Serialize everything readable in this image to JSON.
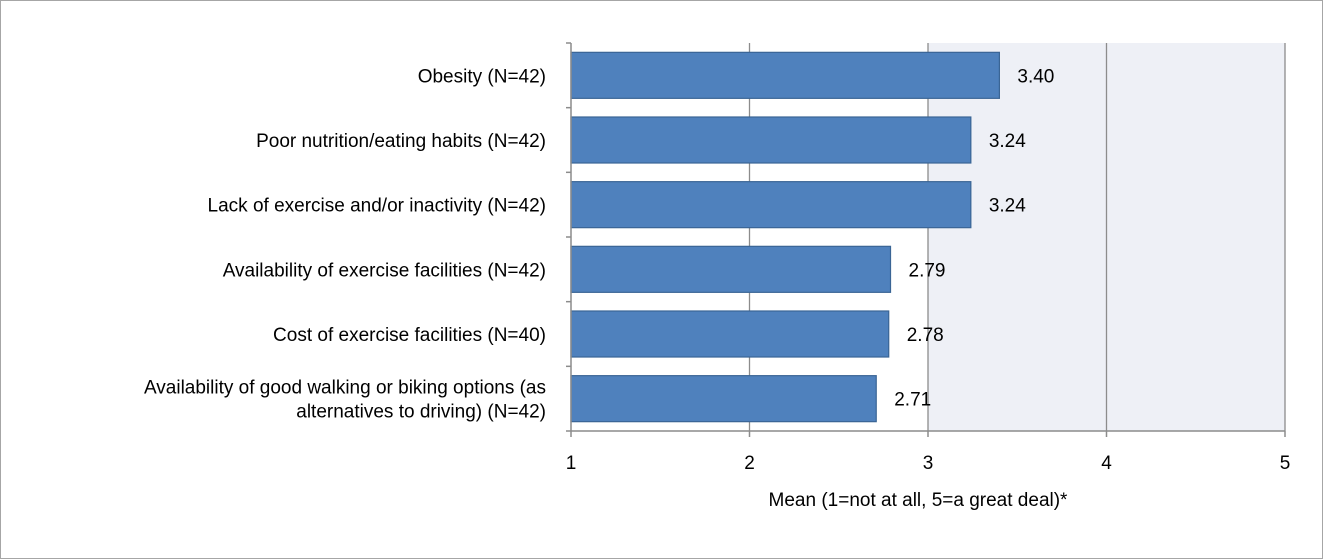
{
  "chart_data": {
    "type": "bar",
    "orientation": "horizontal",
    "categories": [
      "Obesity (N=42)",
      "Poor nutrition/eating habits (N=42)",
      "Lack of exercise and/or inactivity (N=42)",
      "Availability of exercise facilities (N=42)",
      "Cost of exercise facilities (N=40)",
      [
        "Availability of good walking or biking options (as",
        "alternatives to driving) (N=42)"
      ]
    ],
    "values": [
      3.4,
      3.24,
      3.24,
      2.79,
      2.78,
      2.71
    ],
    "value_labels": [
      "3.40",
      "3.24",
      "3.24",
      "2.79",
      "2.78",
      "2.71"
    ],
    "xlim": [
      1,
      5
    ],
    "x_ticks": [
      "1",
      "2",
      "3",
      "4",
      "5"
    ],
    "xlabel": "Mean (1=not at all, 5=a great deal)*",
    "ylabel": "",
    "title": "",
    "grid": "vertical",
    "legend": "none",
    "colors": {
      "bar_fill": "#4f81bd",
      "bar_stroke": "#3a6595",
      "plot_background": "#eef0f6",
      "gridline": "#8c8c8c",
      "axis": "#8c8c8c"
    }
  }
}
